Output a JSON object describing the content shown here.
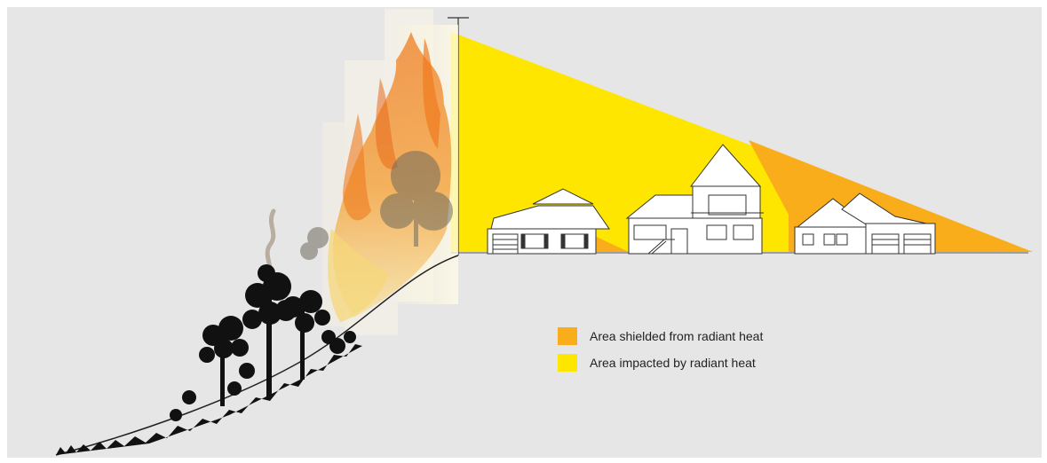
{
  "diagram": {
    "colors": {
      "background": "#e6e6e6",
      "shielded": "#f9ad1b",
      "impacted": "#ffe600",
      "flame_orange": "#ef7a1e",
      "flame_yellow": "#f6c648",
      "vegetation": "#111111",
      "smoke": "#b9ada0"
    },
    "legend": [
      {
        "label": "Area shielded from radiant heat",
        "color": "#f9ad1b"
      },
      {
        "label": "Area impacted by radiant heat",
        "color": "#ffe600"
      }
    ],
    "houses": [
      {
        "name": "single-storey house"
      },
      {
        "name": "two-storey house"
      },
      {
        "name": "house with double garage"
      }
    ]
  }
}
